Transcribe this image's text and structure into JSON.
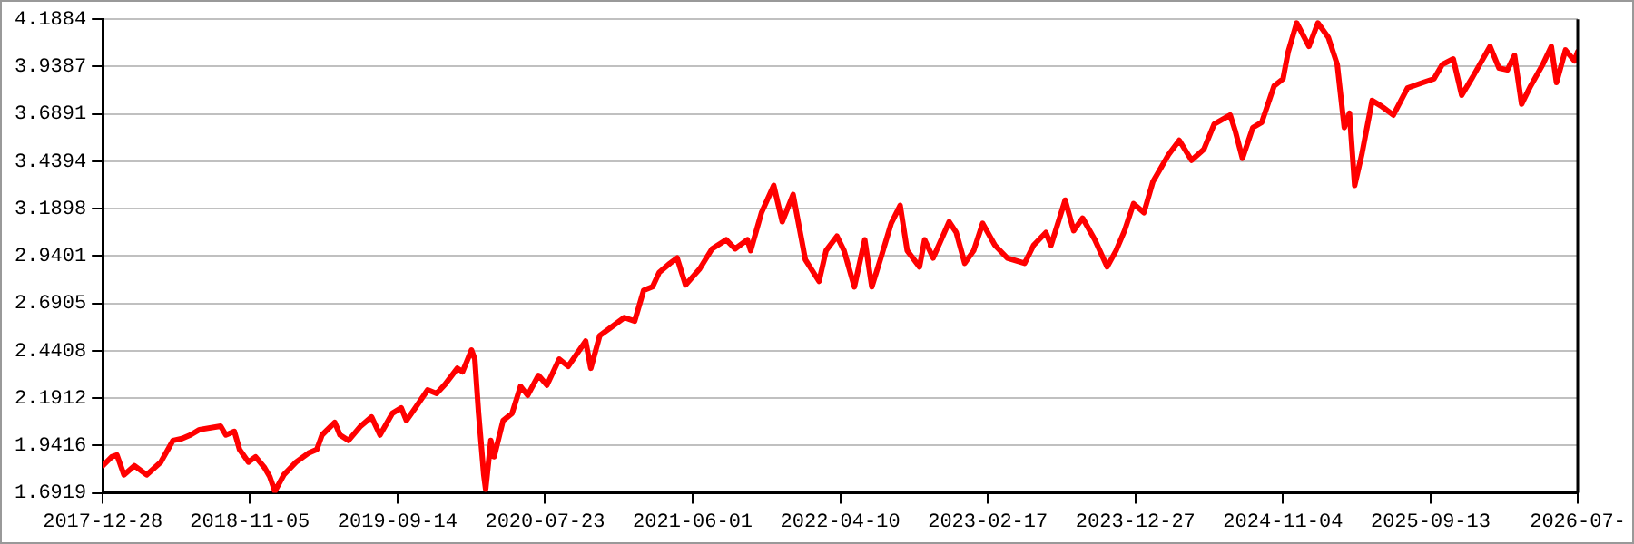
{
  "chart_data": {
    "type": "line",
    "grid": "y",
    "marker": "none",
    "line_style": "solid",
    "xlim": [
      "2017-12-28",
      "2026-07-22"
    ],
    "xticks": [
      {
        "value": "2017-12-28",
        "label": "2017-12-28"
      },
      {
        "value": "2018-11-05",
        "label": "2018-11-05"
      },
      {
        "value": "2019-09-14",
        "label": "2019-09-14"
      },
      {
        "value": "2020-07-23",
        "label": "2020-07-23"
      },
      {
        "value": "2021-06-01",
        "label": "2021-06-01"
      },
      {
        "value": "2022-04-10",
        "label": "2022-04-10"
      },
      {
        "value": "2023-02-17",
        "label": "2023-02-17"
      },
      {
        "value": "2023-12-27",
        "label": "2023-12-27"
      },
      {
        "value": "2024-11-04",
        "label": "2024-11-04"
      },
      {
        "value": "2025-09-13",
        "label": "2025-09-13"
      },
      {
        "value": "2026-07-22",
        "label": "2026-07-"
      }
    ],
    "ylim": [
      1.6919,
      4.1884
    ],
    "yticks": [
      1.6919,
      1.9416,
      2.1912,
      2.4408,
      2.6905,
      2.9401,
      3.1898,
      3.4394,
      3.6891,
      3.9387,
      4.1884
    ],
    "x": [
      "2017-12-28",
      "2018-01-16",
      "2018-01-27",
      "2018-02-11",
      "2018-03-05",
      "2018-03-31",
      "2018-04-30",
      "2018-05-26",
      "2018-06-14",
      "2018-07-02",
      "2018-07-21",
      "2018-09-04",
      "2018-09-15",
      "2018-10-03",
      "2018-10-14",
      "2018-11-02",
      "2018-11-17",
      "2018-12-06",
      "2018-12-17",
      "2018-12-28",
      "2019-01-16",
      "2019-02-11",
      "2019-03-09",
      "2019-03-27",
      "2019-04-07",
      "2019-05-04",
      "2019-05-15",
      "2019-06-02",
      "2019-06-28",
      "2019-07-21",
      "2019-08-08",
      "2019-09-03",
      "2019-09-22",
      "2019-10-03",
      "2019-10-22",
      "2019-11-17",
      "2019-12-06",
      "2019-12-24",
      "2020-01-19",
      "2020-01-30",
      "2020-02-18",
      "2020-02-25",
      "2020-03-04",
      "2020-03-15",
      "2020-03-19",
      "2020-03-30",
      "2020-04-06",
      "2020-04-25",
      "2020-05-14",
      "2020-06-01",
      "2020-06-16",
      "2020-07-09",
      "2020-07-27",
      "2020-08-22",
      "2020-09-10",
      "2020-10-17",
      "2020-10-28",
      "2020-11-16",
      "2020-12-12",
      "2021-01-07",
      "2021-01-29",
      "2021-02-17",
      "2021-03-08",
      "2021-03-22",
      "2021-04-14",
      "2021-04-29",
      "2021-05-17",
      "2021-06-16",
      "2021-07-12",
      "2021-08-11",
      "2021-08-30",
      "2021-09-25",
      "2021-10-02",
      "2021-10-25",
      "2021-11-20",
      "2021-12-08",
      "2021-12-31",
      "2022-01-26",
      "2022-02-24",
      "2022-03-11",
      "2022-04-03",
      "2022-04-18",
      "2022-05-10",
      "2022-06-01",
      "2022-06-16",
      "2022-07-05",
      "2022-07-27",
      "2022-08-15",
      "2022-08-30",
      "2022-09-25",
      "2022-10-06",
      "2022-10-24",
      "2022-11-27",
      "2022-12-12",
      "2022-12-30",
      "2023-01-18",
      "2023-02-06",
      "2023-03-04",
      "2023-03-30",
      "2023-05-06",
      "2023-05-25",
      "2023-06-20",
      "2023-07-01",
      "2023-07-31",
      "2023-08-18",
      "2023-09-06",
      "2023-10-02",
      "2023-10-28",
      "2023-11-16",
      "2023-12-04",
      "2023-12-23",
      "2024-01-14",
      "2024-02-02",
      "2024-03-06",
      "2024-03-29",
      "2024-04-24",
      "2024-05-20",
      "2024-06-11",
      "2024-07-15",
      "2024-07-26",
      "2024-08-10",
      "2024-09-01",
      "2024-09-20",
      "2024-10-16",
      "2024-11-04",
      "2024-11-15",
      "2024-12-03",
      "2024-12-29",
      "2025-01-17",
      "2025-02-08",
      "2025-02-27",
      "2025-03-14",
      "2025-03-25",
      "2025-04-05",
      "2025-04-20",
      "2025-05-12",
      "2025-05-31",
      "2025-06-26",
      "2025-07-26",
      "2025-08-28",
      "2025-09-20",
      "2025-10-08",
      "2025-10-31",
      "2025-11-18",
      "2025-12-11",
      "2026-01-17",
      "2026-02-05",
      "2026-02-23",
      "2026-03-10",
      "2026-03-25",
      "2026-04-13",
      "2026-05-09",
      "2026-05-27",
      "2026-06-07",
      "2026-06-26",
      "2026-07-15",
      "2026-07-22"
    ],
    "series": [
      {
        "color": "#ff0000",
        "values": [
          1.835,
          1.882,
          1.892,
          1.787,
          1.835,
          1.787,
          1.854,
          1.968,
          1.978,
          1.997,
          2.025,
          2.044,
          1.997,
          2.016,
          1.921,
          1.854,
          1.882,
          1.825,
          1.778,
          1.701,
          1.787,
          1.854,
          1.901,
          1.921,
          1.997,
          2.063,
          1.997,
          1.968,
          2.044,
          2.092,
          1.997,
          2.111,
          2.14,
          2.073,
          2.14,
          2.235,
          2.216,
          2.264,
          2.349,
          2.33,
          2.445,
          2.397,
          2.111,
          1.787,
          1.711,
          1.968,
          1.882,
          2.073,
          2.111,
          2.254,
          2.206,
          2.311,
          2.26,
          2.397,
          2.359,
          2.492,
          2.349,
          2.521,
          2.568,
          2.616,
          2.597,
          2.759,
          2.778,
          2.854,
          2.902,
          2.93,
          2.788,
          2.873,
          2.978,
          3.026,
          2.978,
          3.026,
          2.969,
          3.169,
          3.312,
          3.121,
          3.264,
          2.921,
          2.807,
          2.969,
          3.045,
          2.969,
          2.778,
          3.026,
          2.778,
          2.93,
          3.112,
          3.207,
          2.969,
          2.883,
          3.026,
          2.93,
          3.121,
          3.064,
          2.902,
          2.969,
          3.112,
          2.997,
          2.93,
          2.902,
          2.997,
          3.064,
          2.997,
          3.235,
          3.074,
          3.14,
          3.026,
          2.883,
          2.969,
          3.074,
          3.216,
          3.169,
          3.331,
          3.474,
          3.55,
          3.445,
          3.502,
          3.636,
          3.683,
          3.597,
          3.455,
          3.617,
          3.645,
          3.836,
          3.874,
          4.017,
          4.169,
          4.045,
          4.169,
          4.093,
          3.95,
          3.617,
          3.693,
          3.312,
          3.474,
          3.76,
          3.731,
          3.683,
          3.826,
          3.855,
          3.874,
          3.95,
          3.979,
          3.788,
          3.883,
          4.045,
          3.931,
          3.921,
          3.998,
          3.741,
          3.836,
          3.95,
          4.045,
          3.855,
          4.026,
          3.969,
          4.017
        ]
      }
    ]
  }
}
